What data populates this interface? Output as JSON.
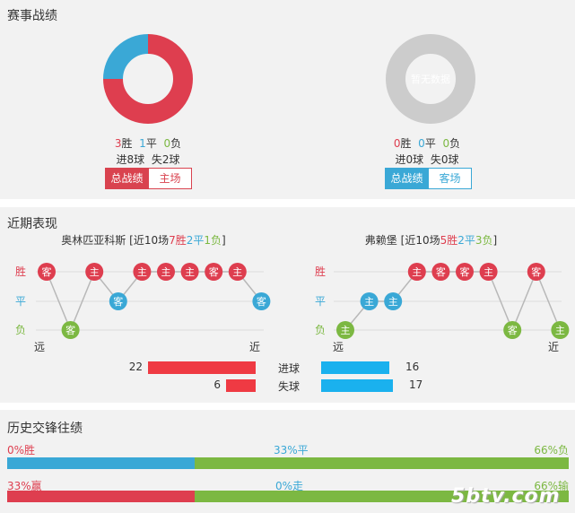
{
  "record": {
    "title": "赛事战绩",
    "left": {
      "wins": "3",
      "win_label": "胜",
      "draws": "1",
      "draw_label": "平",
      "losses": "0",
      "loss_label": "负",
      "goals_for": "进8球",
      "goals_against": "失2球",
      "btn_total": "总战绩",
      "btn_venue": "主场",
      "donut": [
        {
          "label": "胜",
          "value": 3,
          "color": "#de3e4f"
        },
        {
          "label": "平",
          "value": 1,
          "color": "#3aa8d6"
        },
        {
          "label": "负",
          "value": 0,
          "color": "#7cb842"
        }
      ]
    },
    "right": {
      "no_data": "暂无数据",
      "wins": "0",
      "win_label": "胜",
      "draws": "0",
      "draw_label": "平",
      "losses": "0",
      "loss_label": "负",
      "goals_for": "进0球",
      "goals_against": "失0球",
      "btn_total": "总战绩",
      "btn_venue": "客场"
    }
  },
  "recent": {
    "title": "近期表现",
    "axis": {
      "win": "胜",
      "draw": "平",
      "loss": "负",
      "far": "远",
      "near": "近"
    },
    "left_team": {
      "name": "奥林匹亚科斯",
      "prefix": "[近10场",
      "w": "7胜",
      "d": "2平",
      "l": "1负",
      "suffix": "]",
      "matches": [
        {
          "result": "win",
          "venue": "客"
        },
        {
          "result": "loss",
          "venue": "客"
        },
        {
          "result": "win",
          "venue": "主"
        },
        {
          "result": "draw",
          "venue": "客"
        },
        {
          "result": "win",
          "venue": "主"
        },
        {
          "result": "win",
          "venue": "主"
        },
        {
          "result": "win",
          "venue": "主"
        },
        {
          "result": "win",
          "venue": "客"
        },
        {
          "result": "win",
          "venue": "主"
        },
        {
          "result": "draw",
          "venue": "客"
        }
      ]
    },
    "right_team": {
      "name": "弗赖堡",
      "prefix": "[近10场",
      "w": "5胜",
      "d": "2平",
      "l": "3负",
      "suffix": "]",
      "matches": [
        {
          "result": "loss",
          "venue": "主"
        },
        {
          "result": "draw",
          "venue": "主"
        },
        {
          "result": "draw",
          "venue": "主"
        },
        {
          "result": "win",
          "venue": "主"
        },
        {
          "result": "win",
          "venue": "客"
        },
        {
          "result": "win",
          "venue": "客"
        },
        {
          "result": "win",
          "venue": "主"
        },
        {
          "result": "loss",
          "venue": "客"
        },
        {
          "result": "win",
          "venue": "客"
        },
        {
          "result": "loss",
          "venue": "主"
        }
      ]
    },
    "goals": {
      "scored_label": "进球",
      "conceded_label": "失球",
      "left_scored": 22,
      "left_conceded": 6,
      "right_scored": 16,
      "right_conceded": 17,
      "left_color": "#ef3a43",
      "right_color": "#1ab1ee"
    }
  },
  "h2h": {
    "title": "历史交锋往绩",
    "row1": {
      "left": "0%胜",
      "mid": "33%平",
      "right": "66%负",
      "win": 0,
      "draw": 33,
      "loss": 66
    },
    "row2": {
      "left": "33%赢",
      "mid": "0%走",
      "right": "66%输",
      "win": 33,
      "draw": 0,
      "loss": 66
    },
    "watermark": "5btv.com"
  },
  "colors": {
    "win": "#de3e4f",
    "draw": "#3aa8d6",
    "loss": "#7cb842",
    "gray": "#cccccc"
  }
}
